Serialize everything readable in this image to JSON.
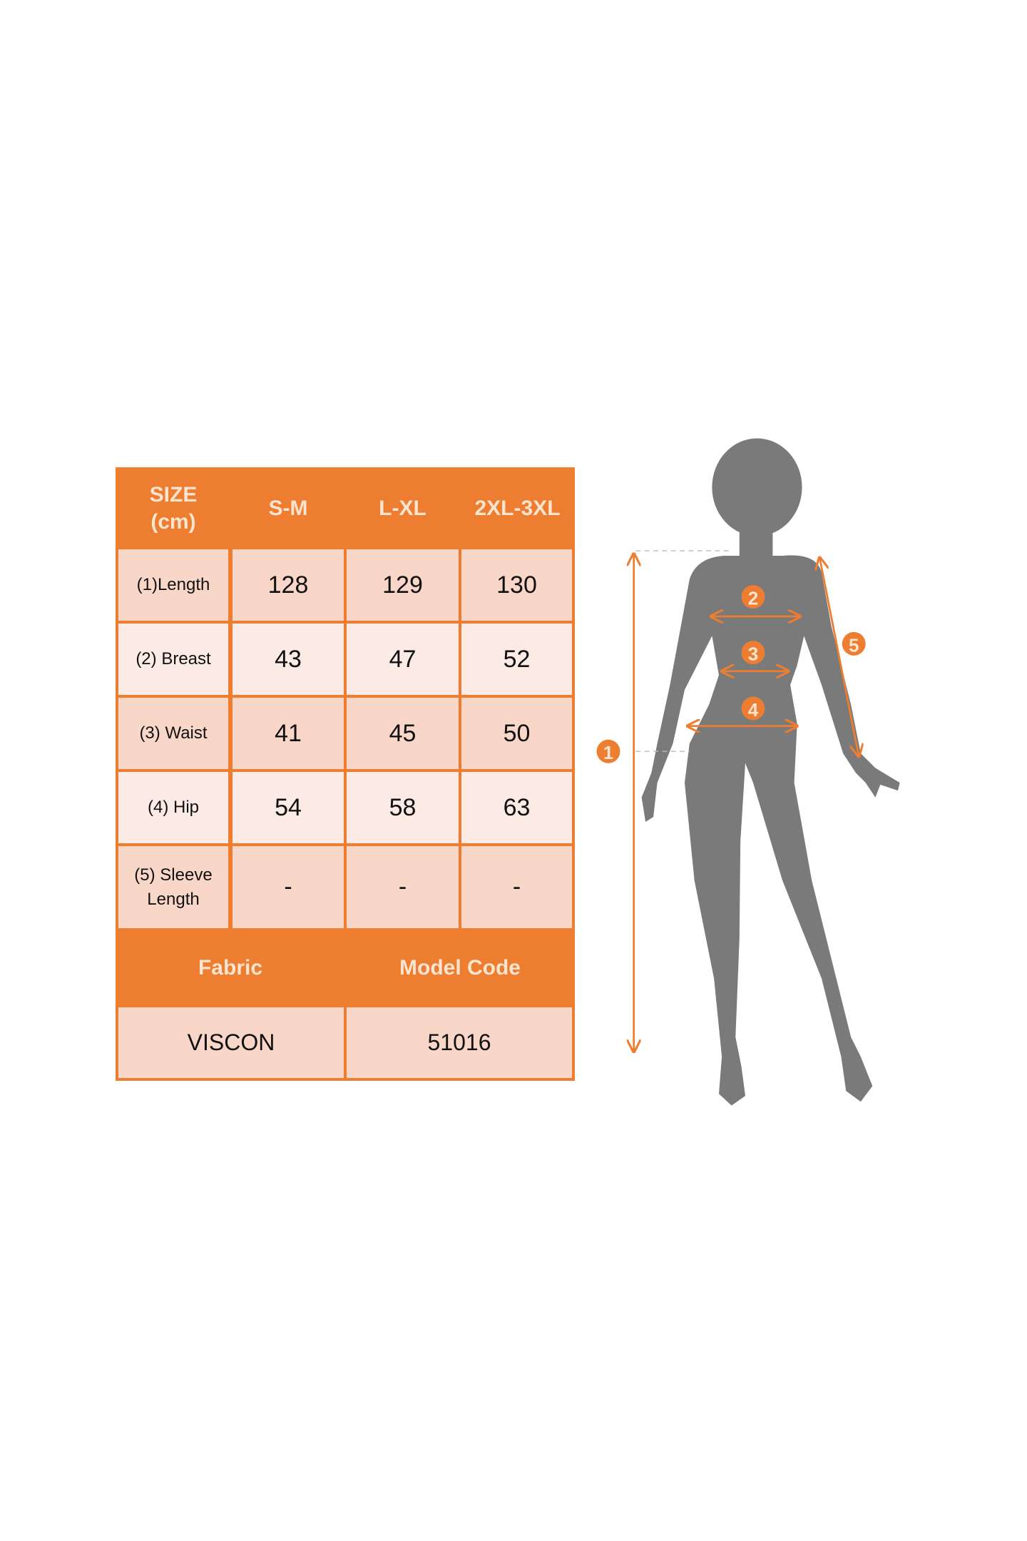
{
  "size_chart": {
    "header": {
      "size_label_line1": "SIZE",
      "size_label_line2": "(cm)",
      "sizes": [
        "S-M",
        "L-XL",
        "2XL-3XL"
      ]
    },
    "rows": [
      {
        "label": "(1)Length",
        "values": [
          "128",
          "129",
          "130"
        ]
      },
      {
        "label": "(2) Breast",
        "values": [
          "43",
          "47",
          "52"
        ]
      },
      {
        "label": "(3) Waist",
        "values": [
          "41",
          "45",
          "50"
        ]
      },
      {
        "label": "(4) Hip",
        "values": [
          "54",
          "58",
          "63"
        ]
      },
      {
        "label_line1": "(5) Sleeve",
        "label_line2": "Length",
        "values": [
          "-",
          "-",
          "-"
        ]
      }
    ],
    "footer": {
      "fabric_label": "Fabric",
      "model_code_label": "Model Code",
      "fabric_value": "VISCON",
      "model_code_value": "51016"
    }
  },
  "figure": {
    "markers": [
      "1",
      "2",
      "3",
      "4",
      "5"
    ]
  },
  "colors": {
    "accent": "#ED7D31",
    "silhouette": "#7a7a7a",
    "cell_dark": "#f8d6c8",
    "cell_light": "#fbebe4"
  }
}
